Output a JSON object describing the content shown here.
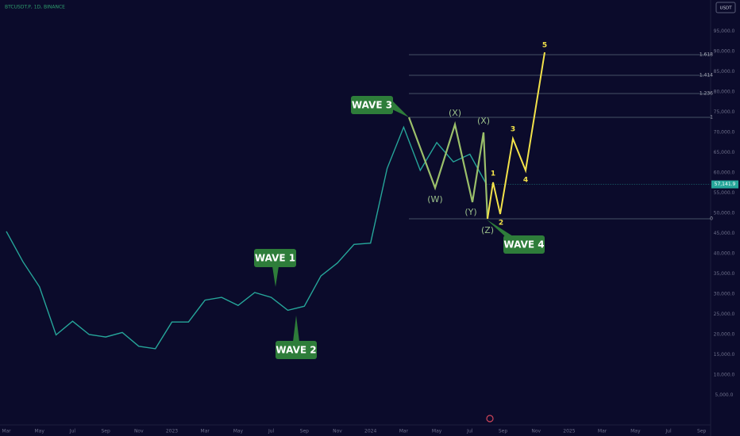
{
  "header": {
    "symbol": "BTCUSDT.P, 1D, BINANCE",
    "currency": "USDT"
  },
  "chart_data": {
    "type": "line",
    "categories": [
      "Mar",
      null,
      "May",
      null,
      "Jul",
      null,
      "Sep",
      null,
      "Nov",
      null,
      "2023",
      null,
      "Mar",
      null,
      "May",
      null,
      "Jul",
      null,
      "Sep",
      null,
      "Nov",
      null,
      "2024",
      null,
      "Mar",
      null,
      "May",
      null,
      "Jul",
      null,
      "Sep",
      null,
      "Nov",
      null,
      "2025",
      null,
      "Mar",
      null,
      "May",
      null,
      "Jul",
      null,
      "Sep"
    ],
    "series": [
      {
        "color": "#26a69a",
        "values": [
          45500,
          38000,
          31800,
          19900,
          23300,
          20000,
          19400,
          20500,
          17100,
          16500,
          23100,
          23100,
          28500,
          29200,
          27200,
          30400,
          29200,
          26000,
          27000,
          34500,
          37700,
          42300,
          42600,
          61100,
          71300,
          60600,
          67500,
          62700,
          64600,
          57141.9,
          null,
          null,
          null,
          null,
          null,
          null,
          null,
          null,
          null,
          null,
          null,
          null,
          null
        ]
      }
    ],
    "last_price_label": "57,141.9",
    "ylim": [
      0,
      100000
    ],
    "yticks": [
      {
        "value": 5000,
        "label": "5,000.0"
      },
      {
        "value": 10000,
        "label": "10,000.0"
      },
      {
        "value": 15000,
        "label": "15,000.0"
      },
      {
        "value": 20000,
        "label": "20,000.0"
      },
      {
        "value": 25000,
        "label": "25,000.0"
      },
      {
        "value": 30000,
        "label": "30,000.0"
      },
      {
        "value": 35000,
        "label": "35,000.0"
      },
      {
        "value": 40000,
        "label": "40,000.0"
      },
      {
        "value": 45000,
        "label": "45,000.0"
      },
      {
        "value": 50000,
        "label": "50,000.0"
      },
      {
        "value": 55000,
        "label": "55,000.0"
      },
      {
        "value": 60000,
        "label": "60,000.0"
      },
      {
        "value": 65000,
        "label": "65,000.0"
      },
      {
        "value": 70000,
        "label": "70,000.0"
      },
      {
        "value": 75000,
        "label": "75,000.0"
      },
      {
        "value": 80000,
        "label": "80,000.0"
      },
      {
        "value": 85000,
        "label": "85,000.0"
      },
      {
        "value": 90000,
        "label": "90,000.0"
      },
      {
        "value": 95000,
        "label": "95,000.0"
      }
    ],
    "grid": false,
    "fib_levels": [
      "1.618",
      "1.414",
      "1.236",
      "1",
      "0"
    ],
    "waves": {
      "main": [
        "WAVE 1",
        "WAVE 2",
        "WAVE 3",
        "WAVE 4"
      ],
      "corrective": [
        "(W)",
        "(X)",
        "(Y)",
        "(X)",
        "(Z)"
      ],
      "impulse": [
        "1",
        "2",
        "3",
        "4",
        "5"
      ]
    }
  }
}
